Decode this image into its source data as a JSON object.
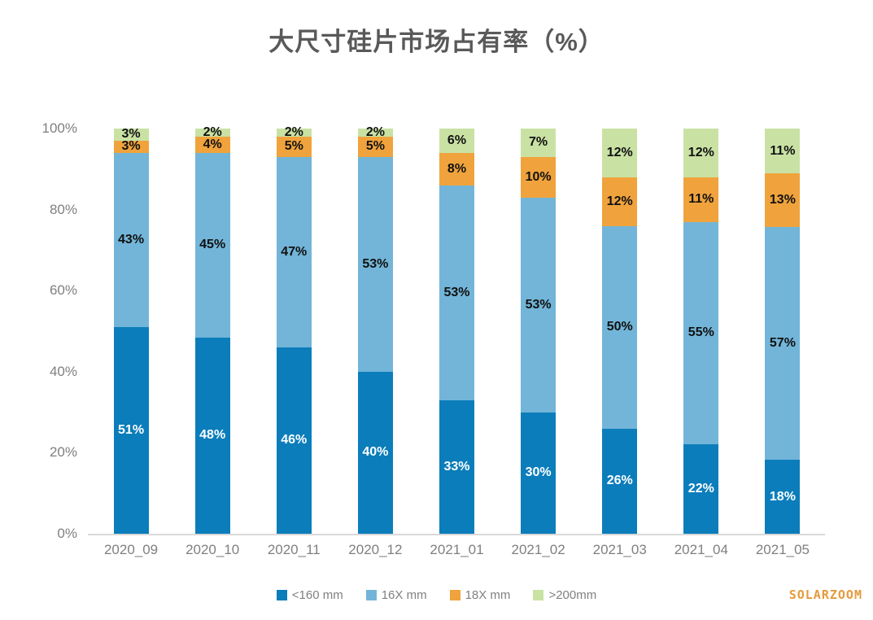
{
  "chart_data": {
    "type": "bar",
    "stacked": true,
    "stack_unit": "percent",
    "title": "大尺寸硅片市场占有率（%）",
    "categories": [
      "2020_09",
      "2020_10",
      "2020_11",
      "2020_12",
      "2021_01",
      "2021_02",
      "2021_03",
      "2021_04",
      "2021_05"
    ],
    "series": [
      {
        "name": "<160 mm",
        "color": "#0b7dbb",
        "label_color": "#ffffff",
        "values": [
          51,
          48,
          46,
          40,
          33,
          30,
          26,
          22,
          18
        ]
      },
      {
        "name": "16X mm",
        "color": "#72b5d8",
        "label_color": "#111111",
        "values": [
          43,
          45,
          47,
          53,
          53,
          53,
          50,
          55,
          57
        ]
      },
      {
        "name": "18X mm",
        "color": "#f0a33c",
        "label_color": "#111111",
        "values": [
          3,
          4,
          5,
          5,
          8,
          10,
          12,
          11,
          13
        ]
      },
      {
        "name": ">200mm",
        "color": "#c9e2a4",
        "label_color": "#111111",
        "values": [
          3,
          2,
          2,
          2,
          6,
          7,
          12,
          12,
          11
        ]
      }
    ],
    "value_suffix": "%",
    "y_ticks_top_to_bottom": [
      "100%",
      "80%",
      "60%",
      "40%",
      "20%",
      "0%"
    ],
    "ylim": [
      0,
      100
    ],
    "grid": false,
    "legend_position": "bottom"
  },
  "title_color": "#595959",
  "axis": {
    "text_color": "#7f7f7f",
    "line_color": "#d9d9d9"
  },
  "watermark": {
    "text": "SOLARZOOM",
    "color": "#e59a3c"
  }
}
